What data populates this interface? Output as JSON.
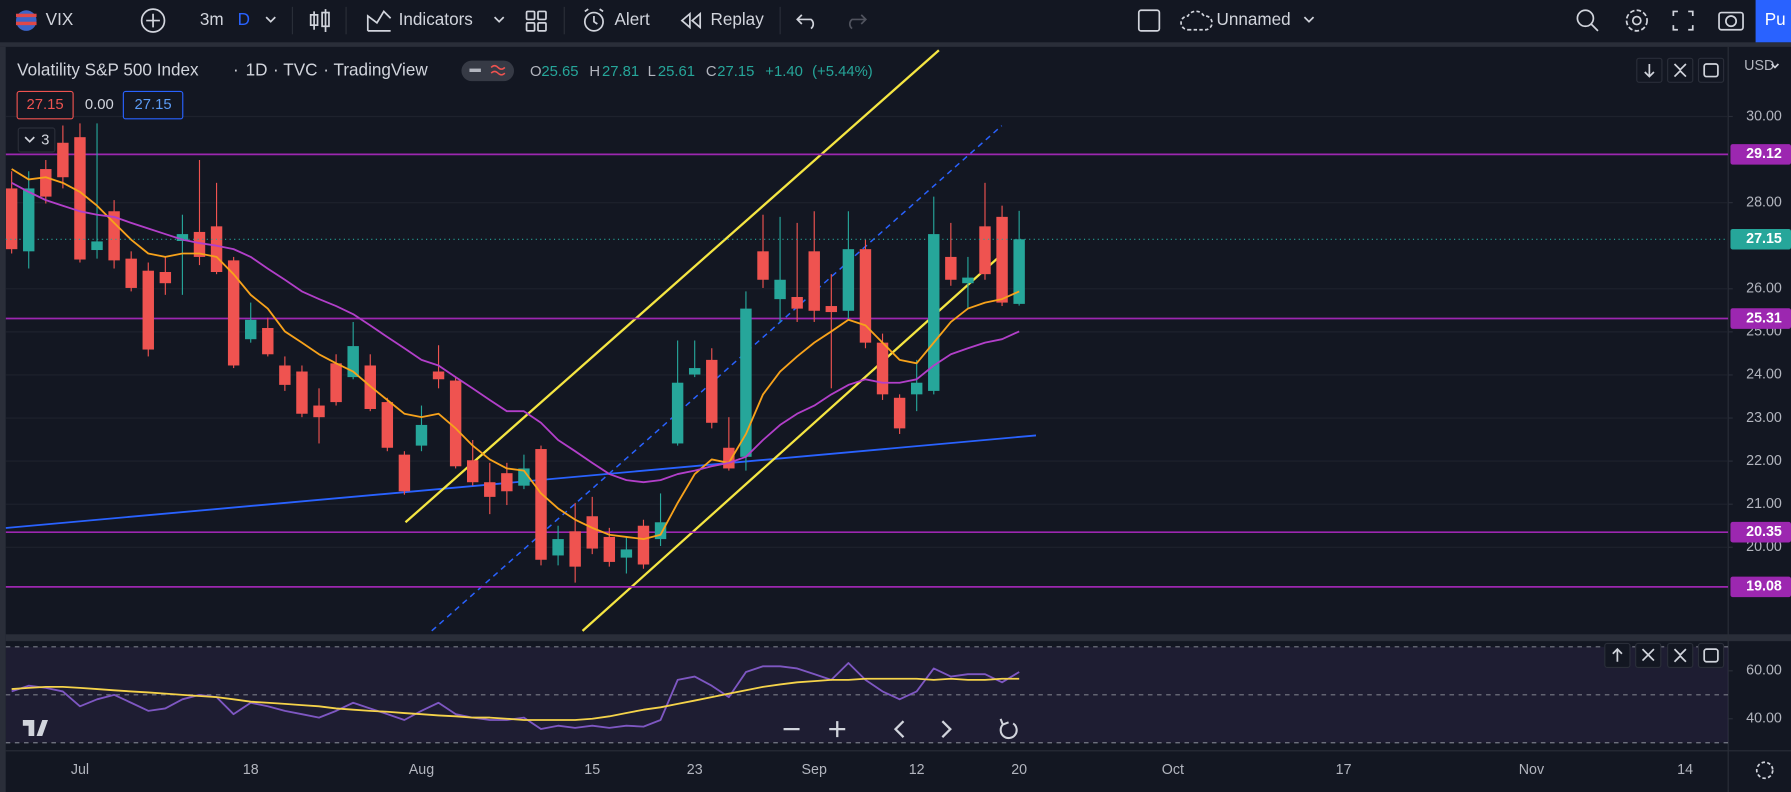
{
  "toolbar": {
    "symbol": "VIX",
    "interval": "3m",
    "interval_unit": "D",
    "indicators": "Indicators",
    "alert": "Alert",
    "replay": "Replay",
    "layout_name": "Unnamed",
    "publish": "Pu"
  },
  "legend": {
    "title": "Volatility S&P 500 Index",
    "separator": "·",
    "interval": "1D",
    "exchange": "TVC",
    "source": "TradingView",
    "open_label": "O",
    "high_label": "H",
    "low_label": "L",
    "close_label": "C",
    "change": "+1.40",
    "change_percent": "(+5.44%)",
    "bid": "27.15",
    "spread": "0.00",
    "ask": "27.15",
    "indicator_count": "3"
  },
  "price_axis": {
    "currency": "USD"
  },
  "chart_data": [
    {
      "type": "candlestick",
      "categories": [
        null,
        null,
        null,
        null,
        "Jul",
        null,
        null,
        null,
        null,
        null,
        null,
        null,
        null,
        null,
        "18",
        null,
        null,
        null,
        null,
        null,
        null,
        null,
        null,
        null,
        "Aug",
        null,
        null,
        null,
        null,
        null,
        null,
        null,
        null,
        null,
        "15",
        null,
        null,
        null,
        null,
        null,
        "23",
        null,
        null,
        null,
        null,
        null,
        null,
        "Sep",
        null,
        null,
        null,
        null,
        null,
        "12",
        null,
        null,
        null,
        null,
        null,
        "20",
        null,
        null,
        null,
        null,
        null,
        null,
        null,
        null,
        "Oct",
        null,
        null,
        null,
        null,
        null,
        null,
        null,
        null,
        null,
        "17",
        null,
        null,
        null,
        null,
        null,
        null,
        null,
        null,
        null,
        null,
        "Nov",
        null,
        null,
        null,
        null,
        null,
        null,
        null,
        null,
        "14"
      ],
      "open": [
        28.33,
        26.87,
        28.78,
        29.39,
        29.52,
        26.9,
        27.8,
        26.7,
        26.42,
        26.39,
        27.11,
        27.32,
        27.45,
        26.66,
        24.83,
        25.09,
        24.22,
        24.08,
        23.29,
        24.27,
        23.95,
        24.22,
        23.37,
        22.15,
        22.36,
        24.08,
        23.87,
        22.02,
        21.51,
        21.72,
        21.43,
        22.28,
        19.81,
        20.37,
        20.72,
        20.24,
        19.76,
        20.5,
        20.19,
        22.41,
        24.01,
        24.35,
        22.31,
        22.1,
        26.87,
        25.76,
        25.81,
        26.87,
        25.6,
        25.49,
        26.92,
        24.75,
        23.47,
        23.55,
        23.63,
        26.74,
        26.13,
        27.45,
        27.67,
        25.65,
        null,
        null,
        null,
        null,
        null,
        null,
        null,
        null,
        null,
        null,
        null,
        null,
        null,
        null,
        null,
        null,
        null,
        null,
        null,
        null,
        null,
        null,
        null,
        null,
        null,
        null,
        null,
        null,
        null,
        null,
        null,
        null,
        null,
        null,
        null,
        null,
        null,
        null,
        null
      ],
      "high": [
        28.73,
        28.73,
        28.99,
        29.79,
        29.84,
        29.84,
        28.06,
        26.87,
        26.61,
        26.74,
        27.72,
        28.99,
        28.46,
        26.74,
        25.68,
        25.33,
        24.43,
        24.22,
        23.69,
        24.48,
        25.23,
        24.48,
        23.47,
        22.23,
        23.29,
        24.69,
        23.95,
        22.49,
        21.96,
        21.96,
        22.15,
        22.36,
        20.5,
        21.03,
        21.17,
        20.45,
        20.24,
        20.64,
        21.25,
        24.8,
        24.8,
        24.62,
        23.02,
        25.94,
        27.72,
        27.67,
        27.53,
        27.8,
        26.34,
        27.8,
        27.14,
        24.96,
        23.55,
        24.35,
        28.14,
        27.53,
        26.74,
        28.46,
        27.93,
        27.81,
        null,
        null,
        null,
        null,
        null,
        null,
        null,
        null,
        null,
        null,
        null,
        null,
        null,
        null,
        null,
        null,
        null,
        null,
        null,
        null,
        null,
        null,
        null,
        null,
        null,
        null,
        null,
        null,
        null,
        null,
        null,
        null,
        null,
        null,
        null,
        null,
        null,
        null,
        null
      ],
      "low": [
        26.82,
        26.47,
        27.98,
        28.33,
        26.61,
        26.7,
        26.47,
        25.94,
        24.43,
        25.86,
        25.86,
        26.55,
        26.34,
        24.16,
        24.75,
        24.43,
        23.63,
        23.02,
        22.41,
        23.29,
        23.9,
        23.16,
        22.23,
        21.22,
        22.23,
        23.69,
        21.83,
        21.43,
        20.77,
        20.98,
        21.35,
        19.58,
        19.58,
        19.18,
        19.84,
        19.55,
        19.39,
        19.5,
        20.03,
        22.36,
        23.95,
        22.76,
        21.78,
        21.78,
        26.02,
        25.23,
        25.23,
        25.23,
        23.69,
        25.28,
        24.62,
        23.42,
        22.63,
        23.16,
        23.55,
        26.07,
        25.54,
        26.21,
        25.6,
        25.61,
        null,
        null,
        null,
        null,
        null,
        null,
        null,
        null,
        null,
        null,
        null,
        null,
        null,
        null,
        null,
        null,
        null,
        null,
        null,
        null,
        null,
        null,
        null,
        null,
        null,
        null,
        null,
        null,
        null,
        null,
        null,
        null,
        null,
        null,
        null,
        null,
        null,
        null,
        null
      ],
      "close": [
        26.92,
        28.33,
        28.14,
        28.59,
        26.68,
        27.1,
        26.66,
        26.02,
        24.59,
        26.13,
        27.27,
        26.74,
        26.39,
        24.22,
        25.28,
        24.48,
        23.77,
        23.1,
        23.02,
        23.37,
        24.67,
        23.21,
        22.31,
        21.3,
        22.84,
        23.9,
        21.88,
        21.51,
        21.17,
        21.3,
        21.83,
        19.71,
        20.19,
        19.55,
        19.97,
        19.66,
        19.95,
        19.6,
        20.58,
        23.82,
        24.16,
        22.89,
        21.83,
        25.54,
        26.21,
        26.21,
        25.54,
        25.49,
        25.46,
        26.92,
        24.75,
        23.55,
        22.76,
        23.82,
        27.27,
        26.21,
        26.26,
        26.34,
        25.68,
        27.15,
        null,
        null,
        null,
        null,
        null,
        null,
        null,
        null,
        null,
        null,
        null,
        null,
        null,
        null,
        null,
        null,
        null,
        null,
        null,
        null,
        null,
        null,
        null,
        null,
        null,
        null,
        null,
        null,
        null,
        null,
        null,
        null,
        null,
        null,
        null,
        null,
        null,
        null,
        null
      ],
      "up_color": "#26a69a",
      "down_color": "#ef5350",
      "series": [
        {
          "color": "#f7a21b",
          "values": [
            28.78,
            28.54,
            28.59,
            28.46,
            28.25,
            27.93,
            27.53,
            27.14,
            26.82,
            26.74,
            26.82,
            26.82,
            26.74,
            26.34,
            25.86,
            25.54,
            25.01,
            24.75,
            24.48,
            24.27,
            24.08,
            23.74,
            23.42,
            23.1,
            23.02,
            23.1,
            22.76,
            22.36,
            22.04,
            21.83,
            21.78,
            21.25,
            20.9,
            20.64,
            20.45,
            20.29,
            20.24,
            20.19,
            20.29,
            21.03,
            21.7,
            22.04,
            21.96,
            22.63,
            23.55,
            24.08,
            24.43,
            24.75,
            25.01,
            25.28,
            25.15,
            24.75,
            24.35,
            24.27,
            24.75,
            25.23,
            25.54,
            25.68,
            25.76,
            25.94,
            null,
            null,
            null,
            null,
            null,
            null,
            null,
            null,
            null,
            null,
            null,
            null,
            null,
            null,
            null,
            null,
            null,
            null,
            null,
            null,
            null,
            null,
            null,
            null,
            null,
            null,
            null,
            null,
            null,
            null,
            null,
            null,
            null,
            null,
            null,
            null,
            null,
            null,
            null
          ]
        },
        {
          "color": "#b23fc9",
          "values": [
            28.46,
            28.25,
            28.06,
            27.93,
            27.8,
            27.72,
            27.67,
            27.53,
            27.4,
            27.27,
            27.14,
            27.06,
            27.0,
            26.92,
            26.74,
            26.47,
            26.21,
            25.94,
            25.76,
            25.6,
            25.41,
            25.15,
            24.88,
            24.62,
            24.35,
            24.22,
            23.95,
            23.69,
            23.42,
            23.16,
            23.16,
            22.89,
            22.49,
            22.23,
            21.96,
            21.7,
            21.56,
            21.51,
            21.56,
            21.7,
            21.78,
            21.88,
            21.96,
            22.1,
            22.49,
            22.84,
            23.1,
            23.29,
            23.55,
            23.77,
            23.9,
            23.82,
            23.82,
            23.9,
            24.22,
            24.48,
            24.62,
            24.75,
            24.83,
            25.01,
            null,
            null,
            null,
            null,
            null,
            null,
            null,
            null,
            null,
            null,
            null,
            null,
            null,
            null,
            null,
            null,
            null,
            null,
            null,
            null,
            null,
            null,
            null,
            null,
            null,
            null,
            null,
            null,
            null,
            null,
            null,
            null,
            null,
            null,
            null,
            null,
            null,
            null,
            null
          ]
        }
      ],
      "ylim": [
        17.98,
        31.59
      ],
      "yticks": [
        {
          "value": 30,
          "label": "30.00"
        },
        {
          "value": 28,
          "label": "28.00"
        },
        {
          "value": 26,
          "label": "26.00"
        },
        {
          "value": 25,
          "label": "25.00"
        },
        {
          "value": 24,
          "label": "24.00"
        },
        {
          "value": 23,
          "label": "23.00"
        },
        {
          "value": 22,
          "label": "22.00"
        },
        {
          "value": 21,
          "label": "21.00"
        },
        {
          "value": 20,
          "label": "20.00"
        }
      ],
      "grid": true,
      "levels": [
        29.12,
        25.31,
        20.35,
        19.08
      ],
      "level_color": "#9c27b0",
      "level_style": "solid",
      "level_badges": true,
      "last_price_line": true
    },
    {
      "type": "line",
      "series": [
        {
          "color": "#7e57c2",
          "values": [
            51.4,
            53.8,
            52.9,
            51.4,
            45.2,
            48.1,
            50.0,
            46.7,
            43.3,
            44.3,
            48.1,
            50.0,
            49.0,
            41.9,
            46.7,
            45.2,
            43.3,
            41.9,
            40.5,
            43.3,
            46.7,
            44.3,
            41.9,
            39.5,
            43.3,
            46.7,
            41.9,
            40.5,
            39.5,
            39.5,
            40.5,
            35.7,
            37.1,
            36.2,
            37.1,
            36.2,
            37.1,
            36.7,
            39.5,
            56.2,
            57.6,
            53.8,
            49.0,
            59.5,
            61.9,
            61.9,
            61.0,
            58.6,
            56.2,
            63.3,
            56.2,
            51.4,
            48.1,
            51.4,
            61.0,
            57.6,
            58.6,
            58.6,
            55.2,
            59.5,
            null,
            null,
            null,
            null,
            null,
            null,
            null,
            null,
            null,
            null,
            null,
            null,
            null,
            null,
            null,
            null,
            null,
            null,
            null,
            null,
            null,
            null,
            null,
            null,
            null,
            null,
            null,
            null,
            null,
            null,
            null,
            null,
            null,
            null,
            null,
            null,
            null,
            null,
            null
          ]
        },
        {
          "color": "#f5d34a",
          "values": [
            52.4,
            52.9,
            53.3,
            53.3,
            52.9,
            52.4,
            51.9,
            51.4,
            51.0,
            50.5,
            50.0,
            49.5,
            49.0,
            48.1,
            47.1,
            46.7,
            46.2,
            45.7,
            45.2,
            44.3,
            43.8,
            43.3,
            42.9,
            42.4,
            41.9,
            41.4,
            41.0,
            40.5,
            40.5,
            40.0,
            39.5,
            39.5,
            39.5,
            39.5,
            40.0,
            41.0,
            42.4,
            43.8,
            44.8,
            46.2,
            47.6,
            49.0,
            50.5,
            51.9,
            53.3,
            54.3,
            55.2,
            55.7,
            56.2,
            56.2,
            56.7,
            56.7,
            56.7,
            56.7,
            56.2,
            56.7,
            56.2,
            56.2,
            56.7,
            56.7,
            null,
            null,
            null,
            null,
            null,
            null,
            null,
            null,
            null,
            null,
            null,
            null,
            null,
            null,
            null,
            null,
            null,
            null,
            null,
            null,
            null,
            null,
            null,
            null,
            null,
            null,
            null,
            null,
            null,
            null,
            null,
            null,
            null,
            null,
            null,
            null,
            null,
            null,
            null
          ]
        }
      ],
      "ylim": [
        29,
        70
      ],
      "yticks": [
        {
          "value": 60,
          "label": "60.00"
        },
        {
          "value": 40,
          "label": "40.00"
        }
      ],
      "grid": false,
      "levels": [
        30,
        50,
        70
      ],
      "level_color": "#787b86",
      "level_style": "dashed",
      "band_color": "#7e57c2"
    }
  ]
}
